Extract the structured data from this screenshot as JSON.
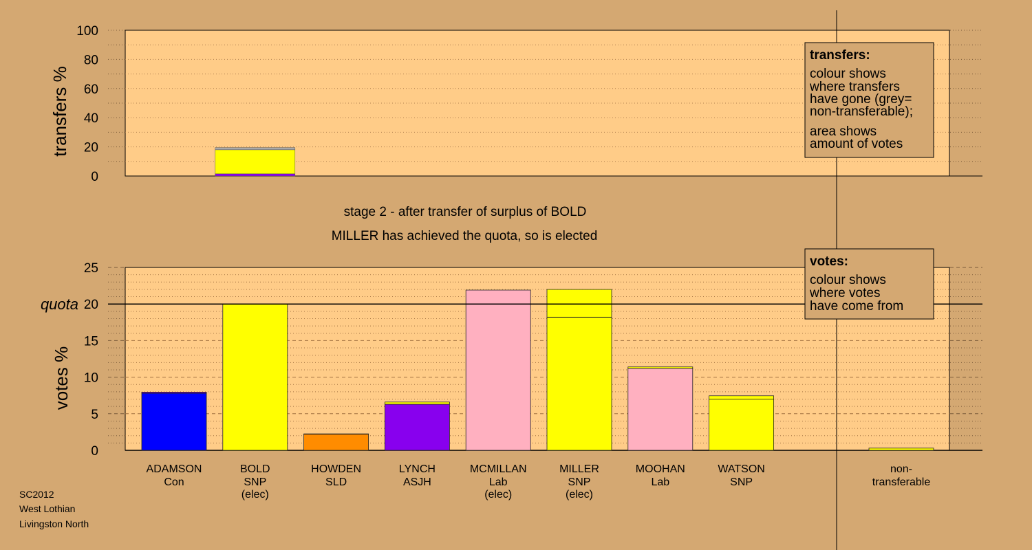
{
  "colors": {
    "background": "#d4a872",
    "plot_fill": "#ffcc88",
    "Con": "#0000ff",
    "SNP": "#ffff00",
    "SLD": "#ff8c00",
    "ASJH": "#8800ee",
    "Lab": "#ffb0c0",
    "grey": "#aaaaaa"
  },
  "stage_text": {
    "line1": "stage 2 - after transfer of surplus of BOLD",
    "line2": "MILLER has achieved the quota, so is elected"
  },
  "footer": [
    "SC2012",
    "West Lothian",
    "Livingston North"
  ],
  "legend_transfers": {
    "title": "transfers:",
    "lines": [
      "colour shows",
      "where transfers",
      "have gone (grey=",
      "non-transferable);",
      "area shows",
      "amount of votes"
    ]
  },
  "legend_votes": {
    "title": "votes:",
    "lines": [
      "colour shows",
      "where votes",
      "have come from"
    ]
  },
  "chart_data": [
    {
      "type": "bar",
      "ylabel": "transfers %",
      "ylim": [
        0,
        100
      ],
      "yticks": [
        0,
        20,
        40,
        60,
        80,
        100
      ],
      "grid": true,
      "bars": [
        {
          "candidate_index": 1,
          "segments": [
            {
              "party": "ASJH",
              "value": 1.5
            },
            {
              "party": "SNP",
              "value": 16.5
            },
            {
              "party": "grey",
              "value": 1.5
            }
          ]
        }
      ]
    },
    {
      "type": "bar",
      "ylabel": "votes %",
      "ylim": [
        0,
        25
      ],
      "yticks": [
        0,
        5,
        10,
        15,
        20,
        25
      ],
      "quota": 20,
      "quota_label": "quota",
      "grid": true,
      "categories": [
        {
          "name": "ADAMSON",
          "party_label": "Con",
          "elec": "",
          "party": "Con",
          "segments": [
            {
              "party": "Con",
              "value": 7.8
            },
            {
              "party": "ASJH",
              "value": 0.15
            }
          ]
        },
        {
          "name": "BOLD",
          "party_label": "SNP",
          "elec": "(elec)",
          "party": "SNP",
          "segments": [
            {
              "party": "SNP",
              "value": 20.0
            }
          ]
        },
        {
          "name": "HOWDEN",
          "party_label": "SLD",
          "elec": "",
          "party": "SLD",
          "segments": [
            {
              "party": "SLD",
              "value": 2.2
            },
            {
              "party": "ASJH",
              "value": 0.05
            }
          ]
        },
        {
          "name": "LYNCH",
          "party_label": "ASJH",
          "elec": "",
          "party": "ASJH",
          "segments": [
            {
              "party": "ASJH",
              "value": 6.3
            },
            {
              "party": "SNP",
              "value": 0.3
            }
          ]
        },
        {
          "name": "MCMILLAN",
          "party_label": "Lab",
          "elec": "(elec)",
          "party": "Lab",
          "segments": [
            {
              "party": "Lab",
              "value": 21.9
            }
          ]
        },
        {
          "name": "MILLER",
          "party_label": "SNP",
          "elec": "(elec)",
          "party": "SNP",
          "segments": [
            {
              "party": "SNP",
              "value": 18.2
            },
            {
              "party": "SNP",
              "value": 3.8
            }
          ]
        },
        {
          "name": "MOOHAN",
          "party_label": "Lab",
          "elec": "",
          "party": "Lab",
          "segments": [
            {
              "party": "Lab",
              "value": 11.2
            },
            {
              "party": "SNP",
              "value": 0.2
            }
          ]
        },
        {
          "name": "WATSON",
          "party_label": "SNP",
          "elec": "",
          "party": "SNP",
          "segments": [
            {
              "party": "SNP",
              "value": 7.0
            },
            {
              "party": "SNP",
              "value": 0.45
            }
          ]
        }
      ],
      "nontransferable": {
        "label_line1": "non-",
        "label_line2": "transferable",
        "segments": [
          {
            "party": "SNP",
            "value": 0.3
          }
        ]
      }
    }
  ]
}
